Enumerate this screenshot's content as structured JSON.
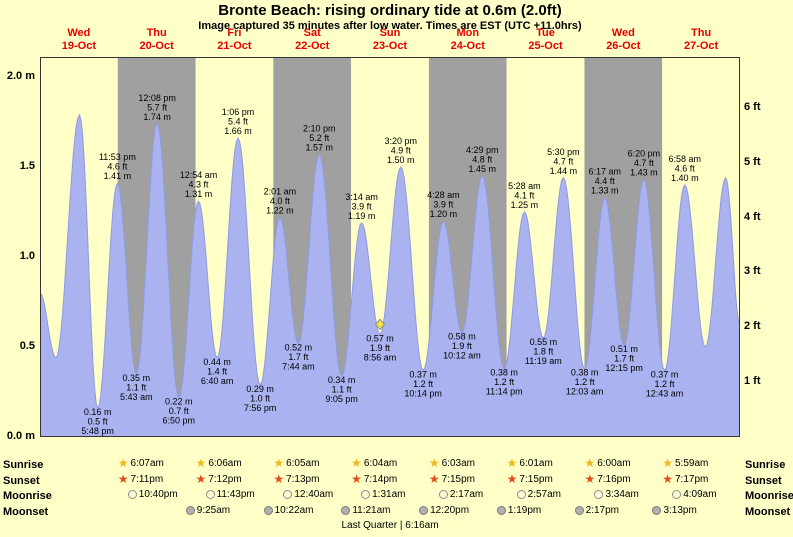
{
  "title": "Bronte Beach: rising ordinary tide at 0.6m (2.0ft)",
  "subtitle": "Image captured 35 minutes after low water. Times are EST (UTC +11.0hrs)",
  "colors": {
    "page_bg": "#ffffc8",
    "band_yellow": "#ffffc8",
    "band_gray": "#a0a0a0",
    "curve_fill": "#aab3f0",
    "curve_stroke": "#8f9ae0",
    "day_header_red": "#e60000",
    "chart_border": "#333333",
    "marker_fill": "#f5e642",
    "marker_stroke": "#8a8a8a",
    "sunrise_star": "#f0b81e",
    "sunset_star": "#e64a19",
    "moonrise_fill": "#ffffd8",
    "moonrise_border": "#8a8a8a",
    "moonset_fill": "#b0b0b0",
    "moonset_border": "#7a7a7a"
  },
  "chart_data": {
    "type": "area",
    "title": "Bronte Beach tide curve",
    "ylim_m": [
      0,
      2.11
    ],
    "axes": {
      "left": [
        {
          "label": "2.0 m",
          "value": 2.0
        },
        {
          "label": "1.5",
          "value": 1.5
        },
        {
          "label": "1.0",
          "value": 1.0
        },
        {
          "label": "0.5",
          "value": 0.5
        },
        {
          "label": "0.0 m",
          "value": 0.0
        }
      ],
      "right": [
        {
          "label": "6 ft",
          "value": 6
        },
        {
          "label": "5 ft",
          "value": 5
        },
        {
          "label": "4 ft",
          "value": 4
        },
        {
          "label": "3 ft",
          "value": 3
        },
        {
          "label": "2 ft",
          "value": 2
        },
        {
          "label": "1 ft",
          "value": 1
        }
      ]
    },
    "days": [
      {
        "name": "Wed",
        "date": "19-Oct",
        "band": "yellow"
      },
      {
        "name": "Thu",
        "date": "20-Oct",
        "band": "gray"
      },
      {
        "name": "Fri",
        "date": "21-Oct",
        "band": "yellow"
      },
      {
        "name": "Sat",
        "date": "22-Oct",
        "band": "gray"
      },
      {
        "name": "Sun",
        "date": "23-Oct",
        "band": "yellow"
      },
      {
        "name": "Mon",
        "date": "24-Oct",
        "band": "gray"
      },
      {
        "name": "Tue",
        "date": "25-Oct",
        "band": "yellow"
      },
      {
        "name": "Wed",
        "date": "26-Oct",
        "band": "gray"
      },
      {
        "name": "Thu",
        "date": "27-Oct",
        "band": "yellow"
      }
    ],
    "tide_events": [
      {
        "day": 0,
        "hour": 0.0,
        "height_m": 0.8,
        "type": "edge"
      },
      {
        "day": 0,
        "hour": 4.9,
        "height_m": 0.44,
        "type": "low"
      },
      {
        "day": 0,
        "hour": 12.2,
        "height_m": 1.79,
        "type": "high"
      },
      {
        "day": 0,
        "hour": 17.8,
        "height_m": 0.16,
        "type": "low",
        "labeled": true,
        "meters": "0.16 m",
        "feet": "0.5 ft",
        "time": "5:48 pm"
      },
      {
        "day": 0,
        "hour": 23.88,
        "height_m": 1.41,
        "type": "high",
        "labeled": true,
        "time": "11:53 pm",
        "feet": "4.6 ft",
        "meters": "1.41 m"
      },
      {
        "day": 1,
        "hour": 5.72,
        "height_m": 0.35,
        "type": "low",
        "labeled": true,
        "meters": "0.35 m",
        "feet": "1.1 ft",
        "time": "5:43 am"
      },
      {
        "day": 1,
        "hour": 12.13,
        "height_m": 1.74,
        "type": "high",
        "labeled": true,
        "time": "12:08 pm",
        "feet": "5.7 ft",
        "meters": "1.74 m"
      },
      {
        "day": 1,
        "hour": 18.83,
        "height_m": 0.22,
        "type": "low",
        "labeled": true,
        "meters": "0.22 m",
        "feet": "0.7 ft",
        "time": "6:50 pm"
      },
      {
        "day": 2,
        "hour": 0.9,
        "height_m": 1.31,
        "type": "high",
        "labeled": true,
        "time": "12:54 am",
        "feet": "4.3 ft",
        "meters": "1.31 m"
      },
      {
        "day": 2,
        "hour": 6.67,
        "height_m": 0.44,
        "type": "low",
        "labeled": true,
        "meters": "0.44 m",
        "feet": "1.4 ft",
        "time": "6:40 am"
      },
      {
        "day": 2,
        "hour": 13.1,
        "height_m": 1.66,
        "type": "high",
        "labeled": true,
        "time": "1:06 pm",
        "feet": "5.4 ft",
        "meters": "1.66 m"
      },
      {
        "day": 2,
        "hour": 19.93,
        "height_m": 0.29,
        "type": "low",
        "labeled": true,
        "meters": "0.29 m",
        "feet": "1.0 ft",
        "time": "7:56 pm"
      },
      {
        "day": 3,
        "hour": 2.02,
        "height_m": 1.22,
        "type": "high",
        "labeled": true,
        "time": "2:01 am",
        "feet": "4.0 ft",
        "meters": "1.22 m"
      },
      {
        "day": 3,
        "hour": 7.73,
        "height_m": 0.52,
        "type": "low",
        "labeled": true,
        "meters": "0.52 m",
        "feet": "1.7 ft",
        "time": "7:44 am"
      },
      {
        "day": 3,
        "hour": 14.17,
        "height_m": 1.57,
        "type": "high",
        "labeled": true,
        "time": "2:10 pm",
        "feet": "5.2 ft",
        "meters": "1.57 m"
      },
      {
        "day": 3,
        "hour": 21.08,
        "height_m": 0.34,
        "type": "low",
        "labeled": true,
        "meters": "0.34 m",
        "feet": "1.1 ft",
        "time": "9:05 pm"
      },
      {
        "day": 4,
        "hour": 3.23,
        "height_m": 1.19,
        "type": "high",
        "labeled": true,
        "time": "3:14 am",
        "feet": "3.9 ft",
        "meters": "1.19 m"
      },
      {
        "day": 4,
        "hour": 8.93,
        "height_m": 0.57,
        "type": "low",
        "labeled": true,
        "meters": "0.57 m",
        "feet": "1.9 ft",
        "time": "8:56 am",
        "current_marker": true
      },
      {
        "day": 4,
        "hour": 15.33,
        "height_m": 1.5,
        "type": "high",
        "labeled": true,
        "time": "3:20 pm",
        "feet": "4.9 ft",
        "meters": "1.50 m"
      },
      {
        "day": 4,
        "hour": 22.23,
        "height_m": 0.37,
        "type": "low",
        "labeled": true,
        "meters": "0.37 m",
        "feet": "1.2 ft",
        "time": "10:14 pm"
      },
      {
        "day": 5,
        "hour": 4.47,
        "height_m": 1.2,
        "type": "high",
        "labeled": true,
        "time": "4:28 am",
        "feet": "3.9 ft",
        "meters": "1.20 m"
      },
      {
        "day": 5,
        "hour": 10.2,
        "height_m": 0.58,
        "type": "low",
        "labeled": true,
        "meters": "0.58 m",
        "feet": "1.9 ft",
        "time": "10:12 am"
      },
      {
        "day": 5,
        "hour": 16.48,
        "height_m": 1.45,
        "type": "high",
        "labeled": true,
        "time": "4:29 pm",
        "feet": "4.8 ft",
        "meters": "1.45 m"
      },
      {
        "day": 5,
        "hour": 23.23,
        "height_m": 0.38,
        "type": "low",
        "labeled": true,
        "meters": "0.38 m",
        "feet": "1.2 ft",
        "time": "11:14 pm"
      },
      {
        "day": 6,
        "hour": 5.47,
        "height_m": 1.25,
        "type": "high",
        "labeled": true,
        "time": "5:28 am",
        "feet": "4.1 ft",
        "meters": "1.25 m"
      },
      {
        "day": 6,
        "hour": 11.32,
        "height_m": 0.55,
        "type": "low",
        "labeled": true,
        "meters": "0.55 m",
        "feet": "1.8 ft",
        "time": "11:19 am"
      },
      {
        "day": 6,
        "hour": 17.5,
        "height_m": 1.44,
        "type": "high",
        "labeled": true,
        "time": "5:30 pm",
        "feet": "4.7 ft",
        "meters": "1.44 m"
      },
      {
        "day": 7,
        "hour": 0.05,
        "height_m": 0.38,
        "type": "low",
        "labeled": true,
        "meters": "0.38 m",
        "feet": "1.2 ft",
        "time": "12:03 am"
      },
      {
        "day": 7,
        "hour": 6.28,
        "height_m": 1.33,
        "type": "high",
        "labeled": true,
        "time": "6:17 am",
        "feet": "4.4 ft",
        "meters": "1.33 m"
      },
      {
        "day": 7,
        "hour": 12.25,
        "height_m": 0.51,
        "type": "low",
        "labeled": true,
        "meters": "0.51 m",
        "feet": "1.7 ft",
        "time": "12:15 pm"
      },
      {
        "day": 7,
        "hour": 18.33,
        "height_m": 1.43,
        "type": "high",
        "labeled": true,
        "time": "6:20 pm",
        "feet": "4.7 ft",
        "meters": "1.43 m"
      },
      {
        "day": 8,
        "hour": 0.72,
        "height_m": 0.37,
        "type": "low",
        "labeled": true,
        "meters": "0.37 m",
        "feet": "1.2 ft",
        "time": "12:43 am"
      },
      {
        "day": 8,
        "hour": 6.97,
        "height_m": 1.4,
        "type": "high",
        "labeled": true,
        "time": "6:58 am",
        "feet": "4.6 ft",
        "meters": "1.40 m"
      },
      {
        "day": 8,
        "hour": 13.3,
        "height_m": 0.5,
        "type": "low"
      },
      {
        "day": 8,
        "hour": 19.6,
        "height_m": 1.44,
        "type": "high"
      },
      {
        "day": 8,
        "hour": 24.0,
        "height_m": 0.62,
        "type": "edge"
      }
    ]
  },
  "astro": {
    "rows": [
      {
        "label": "Sunrise",
        "icon": "sunrise-icon",
        "entries": [
          {
            "col": 1,
            "time": "6:07am"
          },
          {
            "col": 2,
            "time": "6:06am"
          },
          {
            "col": 3,
            "time": "6:05am"
          },
          {
            "col": 4,
            "time": "6:04am"
          },
          {
            "col": 5,
            "time": "6:03am"
          },
          {
            "col": 6,
            "time": "6:01am"
          },
          {
            "col": 7,
            "time": "6:00am"
          },
          {
            "col": 8,
            "time": "5:59am"
          }
        ]
      },
      {
        "label": "Sunset",
        "icon": "sunset-icon",
        "entries": [
          {
            "col": 1,
            "time": "7:11pm"
          },
          {
            "col": 2,
            "time": "7:12pm"
          },
          {
            "col": 3,
            "time": "7:13pm"
          },
          {
            "col": 4,
            "time": "7:14pm"
          },
          {
            "col": 5,
            "time": "7:15pm"
          },
          {
            "col": 6,
            "time": "7:15pm"
          },
          {
            "col": 7,
            "time": "7:16pm"
          },
          {
            "col": 8,
            "time": "7:17pm"
          }
        ]
      },
      {
        "label": "Moonrise",
        "icon": "moonrise-icon",
        "entries": [
          {
            "col": 1,
            "time": "10:40pm"
          },
          {
            "col": 2,
            "time": "11:43pm"
          },
          {
            "col": 3,
            "time": "12:40am"
          },
          {
            "col": 4,
            "time": "1:31am"
          },
          {
            "col": 5,
            "time": "2:17am"
          },
          {
            "col": 6,
            "time": "2:57am"
          },
          {
            "col": 7,
            "time": "3:34am"
          },
          {
            "col": 8,
            "time": "4:09am"
          }
        ]
      },
      {
        "label": "Moonset",
        "icon": "moonset-icon",
        "entries": [
          {
            "col": 1,
            "time": "9:25am"
          },
          {
            "col": 2,
            "time": "10:22am"
          },
          {
            "col": 3,
            "time": "11:21am"
          },
          {
            "col": 4,
            "time": "12:20pm"
          },
          {
            "col": 5,
            "time": "1:19pm"
          },
          {
            "col": 6,
            "time": "2:17pm"
          },
          {
            "col": 7,
            "time": "3:13pm"
          }
        ]
      }
    ],
    "footer": "Last Quarter | 6:16am"
  }
}
